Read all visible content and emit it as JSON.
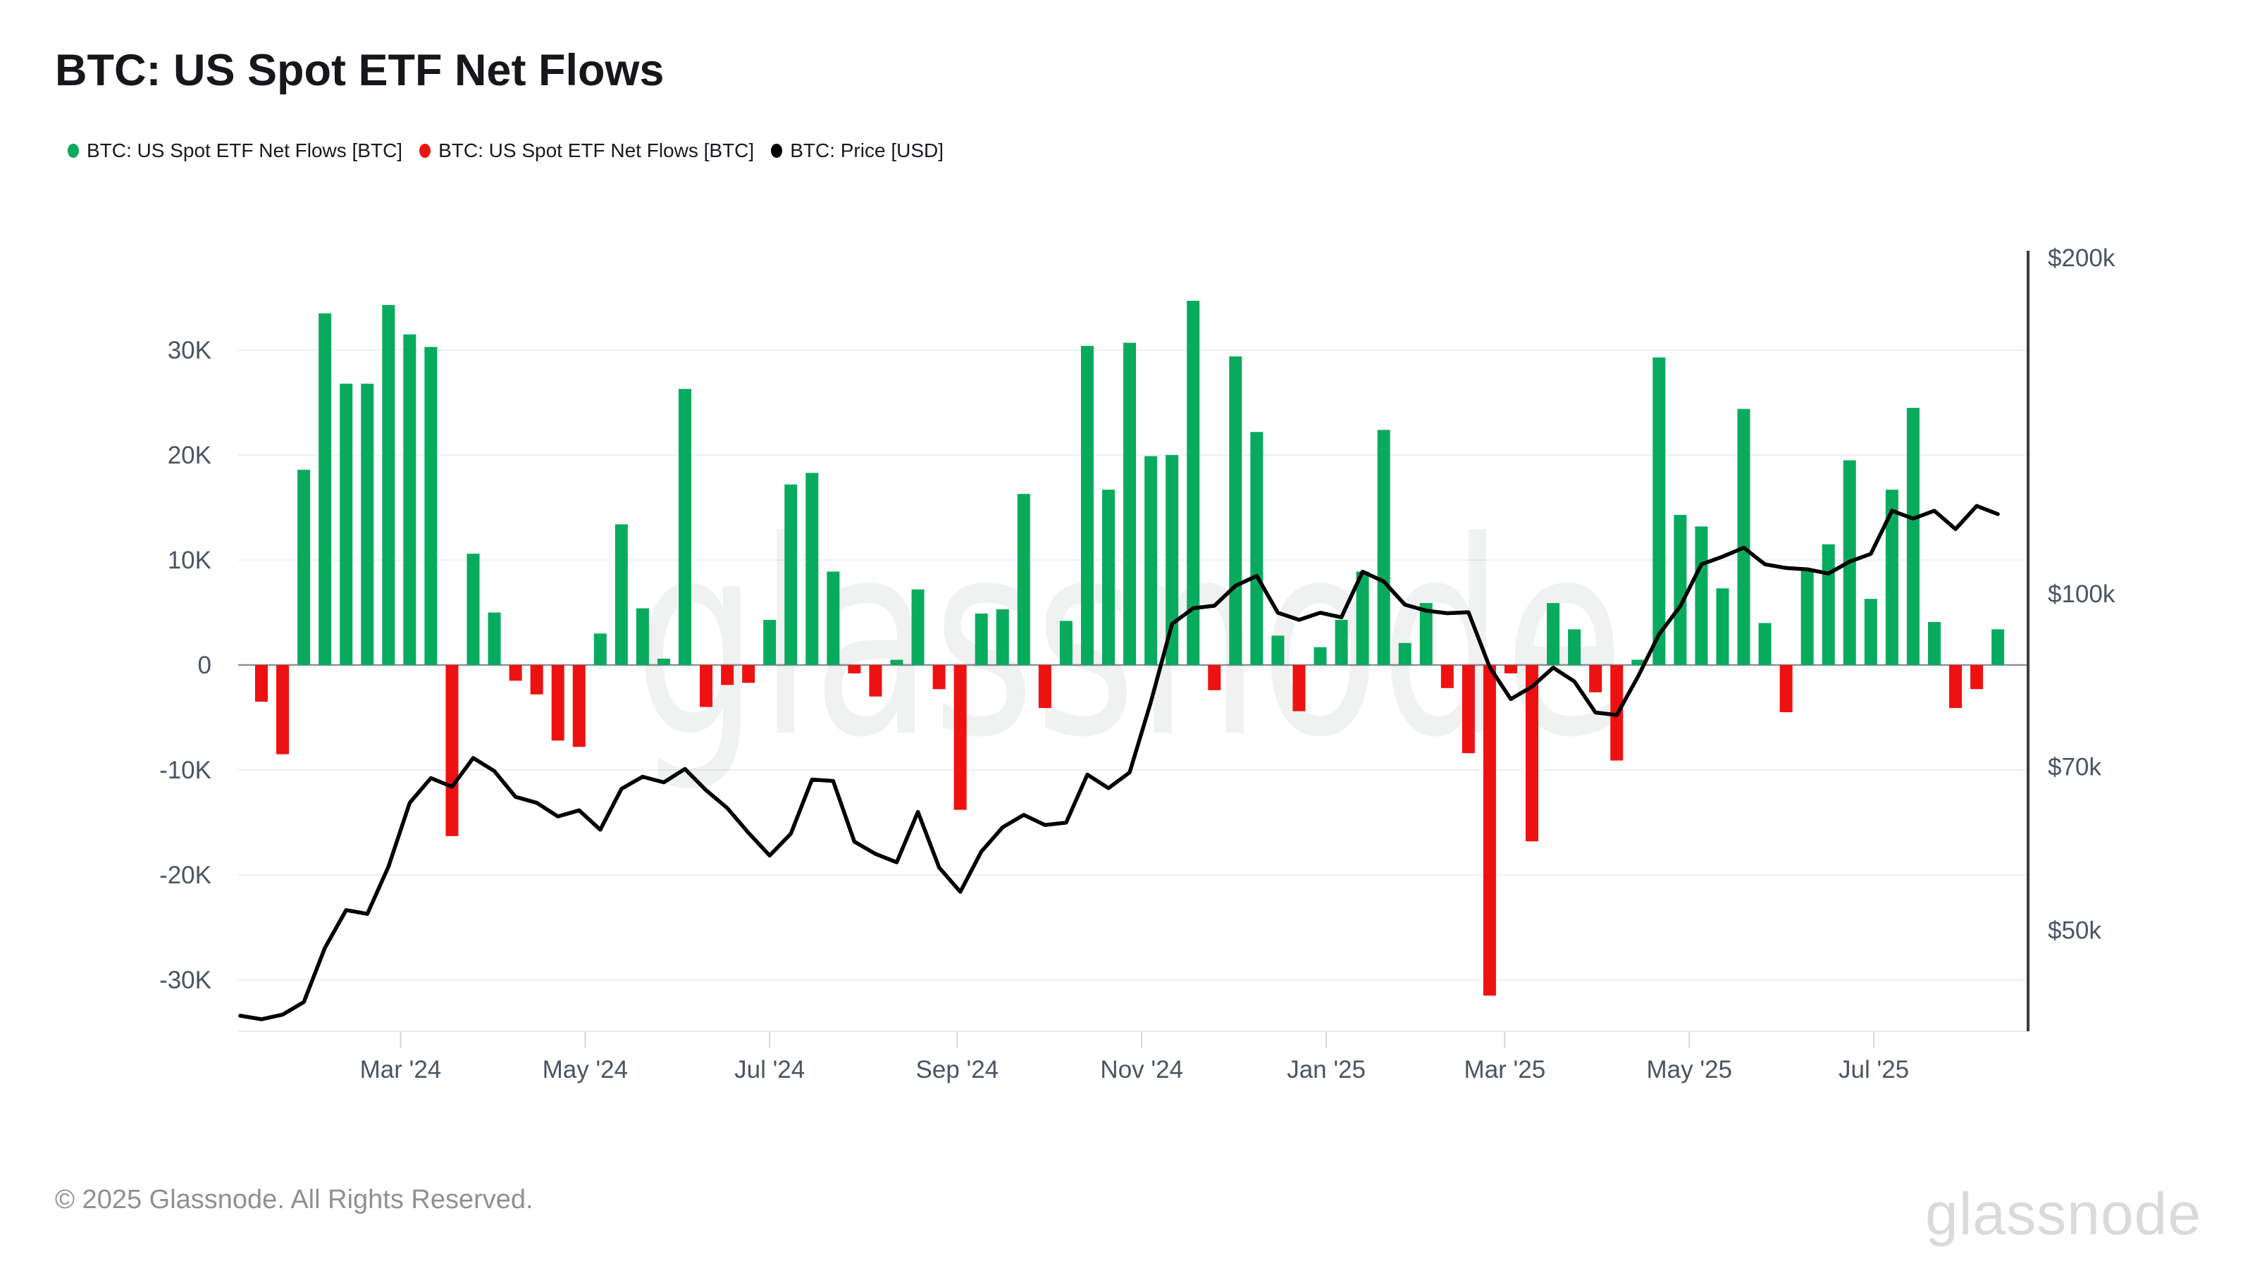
{
  "title": "BTC: US Spot ETF Net Flows",
  "legend": [
    {
      "label": "BTC: US Spot ETF Net Flows [BTC]",
      "color": "#08ab5d"
    },
    {
      "label": "BTC: US Spot ETF Net Flows [BTC]",
      "color": "#ee1111"
    },
    {
      "label": "BTC: Price [USD]",
      "color": "#000000"
    }
  ],
  "watermark": "glassnode",
  "footer": {
    "copyright": "© 2025 Glassnode. All Rights Reserved.",
    "brand": "glassnode"
  },
  "chart_data": {
    "type": "bar+line",
    "title": "BTC: US Spot ETF Net Flows",
    "series": [
      {
        "name": "BTC: US Spot ETF Net Flows [BTC]",
        "type": "bar",
        "polarity": "positive",
        "color": "#08ab5d",
        "axis": "left"
      },
      {
        "name": "BTC: US Spot ETF Net Flows [BTC]",
        "type": "bar",
        "polarity": "negative",
        "color": "#ee1111",
        "axis": "left"
      },
      {
        "name": "BTC: Price [USD]",
        "type": "line",
        "color": "#000000",
        "axis": "right",
        "scale": "log"
      }
    ],
    "start_date": "2024-01-15",
    "interval_days": 7,
    "flows_unit": "BTC (thousands)",
    "flows": [
      -3.5,
      -8.5,
      18.6,
      33.5,
      26.8,
      26.8,
      34.3,
      31.5,
      30.3,
      -16.3,
      10.6,
      5.0,
      -1.5,
      -2.8,
      -7.2,
      -7.8,
      3.0,
      13.4,
      5.4,
      0.6,
      26.3,
      -4.0,
      -1.9,
      -1.7,
      4.3,
      17.2,
      18.3,
      8.9,
      -0.8,
      -3.0,
      0.5,
      7.2,
      -2.3,
      -13.8,
      4.9,
      5.3,
      16.3,
      -4.1,
      4.2,
      30.4,
      16.7,
      30.7,
      19.9,
      20.0,
      34.7,
      -2.4,
      29.4,
      22.2,
      2.8,
      -4.4,
      1.7,
      4.3,
      8.9,
      22.4,
      2.1,
      5.9,
      -2.2,
      -8.4,
      -31.5,
      -0.8,
      -16.8,
      5.9,
      3.4,
      -2.6,
      -9.1,
      0.5,
      29.3,
      14.3,
      13.2,
      7.3,
      24.4,
      4.0,
      -4.5,
      9.0,
      11.5,
      19.5,
      6.3,
      16.7,
      24.5,
      4.1,
      -4.1,
      -2.3,
      3.4
    ],
    "price_start_date": "2024-01-08",
    "prices_unit": "USD (thousands)",
    "prices": [
      41.9,
      41.6,
      42.0,
      43.1,
      48.2,
      52.1,
      51.7,
      57.0,
      65.0,
      68.4,
      67.2,
      71.3,
      69.4,
      65.8,
      65.0,
      63.2,
      64.0,
      61.5,
      66.9,
      68.6,
      67.8,
      69.7,
      66.7,
      64.3,
      61.1,
      58.3,
      61.0,
      68.2,
      68.0,
      60.0,
      58.5,
      57.5,
      63.8,
      56.9,
      54.1,
      58.8,
      61.8,
      63.4,
      62.1,
      62.4,
      68.9,
      67.0,
      69.2,
      80.0,
      94.0,
      97.1,
      97.6,
      101.7,
      103.8,
      96.2,
      94.8,
      96.2,
      95.3,
      104.7,
      102.6,
      97.8,
      96.6,
      96.1,
      96.3,
      86.0,
      80.5,
      82.6,
      85.9,
      83.5,
      78.3,
      77.9,
      84.3,
      92.0,
      97.5,
      106.3,
      108.0,
      110.0,
      106.3,
      105.5,
      105.2,
      104.3,
      106.9,
      108.6,
      118.7,
      116.8,
      118.7,
      114.3,
      119.9,
      117.9
    ],
    "left_axis": {
      "tick_labels": [
        "30K",
        "20K",
        "10K",
        "0",
        "-10K",
        "-20K",
        "-30K"
      ],
      "tick_values": [
        30,
        20,
        10,
        0,
        -10,
        -20,
        -30
      ],
      "range": [
        -35,
        36
      ]
    },
    "right_axis": {
      "scale": "log",
      "tick_labels": [
        "$200k",
        "$100k",
        "$70k",
        "$50k"
      ],
      "tick_values": [
        200,
        100,
        70,
        50
      ]
    },
    "x_ticks": [
      {
        "label": "Mar '24",
        "date": "2024-03-01"
      },
      {
        "label": "May '24",
        "date": "2024-05-01"
      },
      {
        "label": "Jul '24",
        "date": "2024-07-01"
      },
      {
        "label": "Sep '24",
        "date": "2024-09-01"
      },
      {
        "label": "Nov '24",
        "date": "2024-11-01"
      },
      {
        "label": "Jan '25",
        "date": "2025-01-01"
      },
      {
        "label": "Mar '25",
        "date": "2025-03-01"
      },
      {
        "label": "May '25",
        "date": "2025-05-01"
      },
      {
        "label": "Jul '25",
        "date": "2025-07-01"
      }
    ],
    "grid": "horizontal",
    "legend_position": "top-left",
    "colors": {
      "positive": "#08ab5d",
      "negative": "#ee1111",
      "price": "#000000"
    }
  }
}
